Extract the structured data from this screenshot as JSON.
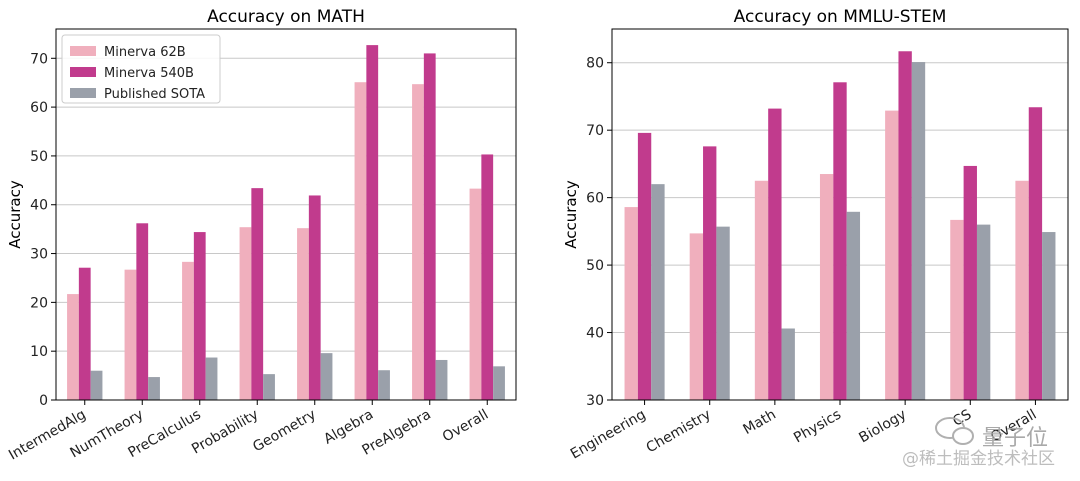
{
  "chart_data": [
    {
      "type": "bar",
      "title": "Accuracy on MATH",
      "xlabel": "",
      "ylabel": "Accuracy",
      "ylim": [
        0,
        76
      ],
      "yticks": [
        0,
        10,
        20,
        30,
        40,
        50,
        60,
        70
      ],
      "grid": true,
      "legend_position": "top-left",
      "categories": [
        "IntermedAlg",
        "NumTheory",
        "PreCalculus",
        "Probability",
        "Geometry",
        "Algebra",
        "PreAlgebra",
        "Overall"
      ],
      "series": [
        {
          "name": "Minerva 62B",
          "color": "#f0afbd",
          "values": [
            21.7,
            26.7,
            28.3,
            35.4,
            35.2,
            65.1,
            64.7,
            43.3
          ]
        },
        {
          "name": "Minerva 540B",
          "color": "#c13b8d",
          "values": [
            27.1,
            36.2,
            34.4,
            43.4,
            41.9,
            72.7,
            71.0,
            50.3
          ]
        },
        {
          "name": "Published SOTA",
          "color": "#9aa0aa",
          "values": [
            6.0,
            4.7,
            8.7,
            5.3,
            9.6,
            6.1,
            8.2,
            6.9
          ]
        }
      ]
    },
    {
      "type": "bar",
      "title": "Accuracy on MMLU-STEM",
      "xlabel": "",
      "ylabel": "Accuracy",
      "ylim": [
        30,
        85
      ],
      "yticks": [
        30,
        40,
        50,
        60,
        70,
        80
      ],
      "grid": true,
      "categories": [
        "Engineering",
        "Chemistry",
        "Math",
        "Physics",
        "Biology",
        "CS",
        "Overall"
      ],
      "series": [
        {
          "name": "Minerva 62B",
          "color": "#f0afbd",
          "values": [
            58.6,
            54.7,
            62.5,
            63.5,
            72.9,
            56.7,
            62.5
          ]
        },
        {
          "name": "Minerva 540B",
          "color": "#c13b8d",
          "values": [
            69.6,
            67.6,
            73.2,
            77.1,
            81.7,
            64.7,
            73.4
          ]
        },
        {
          "name": "Published SOTA",
          "color": "#9aa0aa",
          "values": [
            62.0,
            55.7,
            40.6,
            57.9,
            80.1,
            56.0,
            54.9
          ]
        }
      ]
    }
  ],
  "watermark": {
    "logo_text": "量子位",
    "source_text": "@稀土掘金技术社区"
  }
}
